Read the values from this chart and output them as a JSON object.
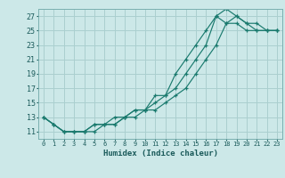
{
  "xlabel": "Humidex (Indice chaleur)",
  "bg_color": "#cce8e8",
  "grid_color": "#aacfcf",
  "line_color": "#1a7a6e",
  "xlim": [
    -0.5,
    23.5
  ],
  "ylim": [
    10.0,
    28.0
  ],
  "xticks": [
    0,
    1,
    2,
    3,
    4,
    5,
    6,
    7,
    8,
    9,
    10,
    11,
    12,
    13,
    14,
    15,
    16,
    17,
    18,
    19,
    20,
    21,
    22,
    23
  ],
  "yticks": [
    11,
    13,
    15,
    17,
    19,
    21,
    23,
    25,
    27
  ],
  "line1_x": [
    0,
    1,
    2,
    3,
    4,
    5,
    6,
    7,
    8,
    9,
    10,
    11,
    12,
    13,
    14,
    15,
    16,
    17,
    18,
    19,
    20,
    21,
    22,
    23
  ],
  "line1_y": [
    13,
    12,
    11,
    11,
    11,
    11,
    12,
    12,
    13,
    13,
    14,
    14,
    15,
    16,
    17,
    19,
    21,
    23,
    26,
    27,
    26,
    25,
    25,
    25
  ],
  "line2_x": [
    0,
    1,
    2,
    3,
    4,
    5,
    6,
    7,
    8,
    9,
    10,
    11,
    12,
    13,
    14,
    15,
    16,
    17,
    18,
    19,
    20,
    21,
    22,
    23
  ],
  "line2_y": [
    13,
    12,
    11,
    11,
    11,
    12,
    12,
    13,
    13,
    14,
    14,
    15,
    16,
    17,
    19,
    21,
    23,
    27,
    28,
    27,
    26,
    26,
    25,
    25
  ],
  "line3_x": [
    0,
    1,
    2,
    3,
    4,
    5,
    6,
    7,
    8,
    9,
    10,
    11,
    12,
    13,
    14,
    15,
    16,
    17,
    18,
    19,
    20,
    21,
    22,
    23
  ],
  "line3_y": [
    13,
    12,
    11,
    11,
    11,
    12,
    12,
    12,
    13,
    14,
    14,
    16,
    16,
    19,
    21,
    23,
    25,
    27,
    26,
    26,
    25,
    25,
    25,
    25
  ]
}
